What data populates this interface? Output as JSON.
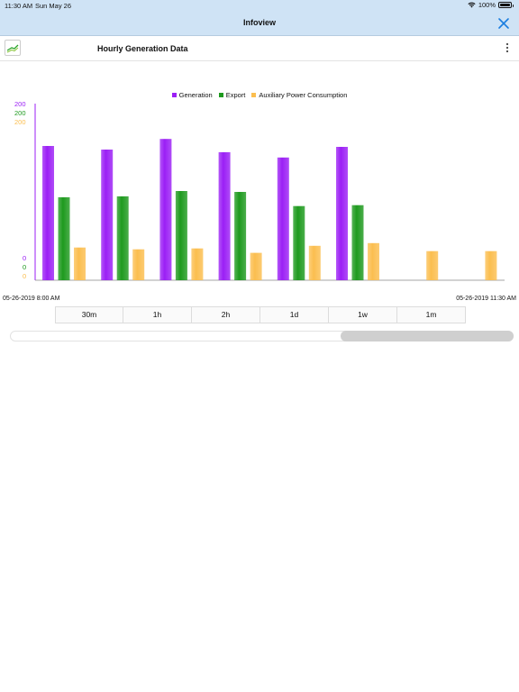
{
  "status_bar": {
    "time": "11:30 AM",
    "date": "Sun May 26",
    "battery": "100%"
  },
  "nav": {
    "title": "Infoview",
    "close_icon": "close-icon"
  },
  "header": {
    "title": "Hourly Generation Data",
    "icon": "line-chart-icon",
    "menu_icon": "more-vertical-icon"
  },
  "axis": {
    "top_labels": [
      "200",
      "200",
      "200"
    ],
    "bottom_labels": [
      "0",
      "0",
      "0"
    ]
  },
  "dates": {
    "start": "05-26-2019 8:00 AM",
    "end": "05-26-2019 11:30 AM"
  },
  "ranges": [
    "30m",
    "1h",
    "2h",
    "1d",
    "1w",
    "1m"
  ],
  "colors": {
    "generation": "#9b1ff5",
    "export": "#1e9a1e",
    "auxiliary": "#fbbe4f",
    "nav_bg": "#cfe3f5",
    "accent": "#1a7ee0"
  },
  "chart_data": {
    "type": "bar",
    "legend_position": "top-center",
    "grid": false,
    "categories": [
      "",
      "",
      "",
      "",
      "",
      "",
      "",
      ""
    ],
    "series": [
      {
        "name": "Generation",
        "axis": 0,
        "ylim": [
          0,
          200
        ],
        "values": [
          152,
          148,
          160,
          145,
          139,
          151,
          null,
          null
        ]
      },
      {
        "name": "Export",
        "axis": 1,
        "ylim": [
          0,
          200
        ],
        "values": [
          94,
          95,
          101,
          100,
          84,
          85,
          null,
          null
        ]
      },
      {
        "name": "Auxiliary Power Consumption",
        "axis": 2,
        "ylim": [
          0,
          200
        ],
        "values": [
          37,
          35,
          36,
          31,
          39,
          42,
          33,
          33
        ]
      }
    ]
  }
}
